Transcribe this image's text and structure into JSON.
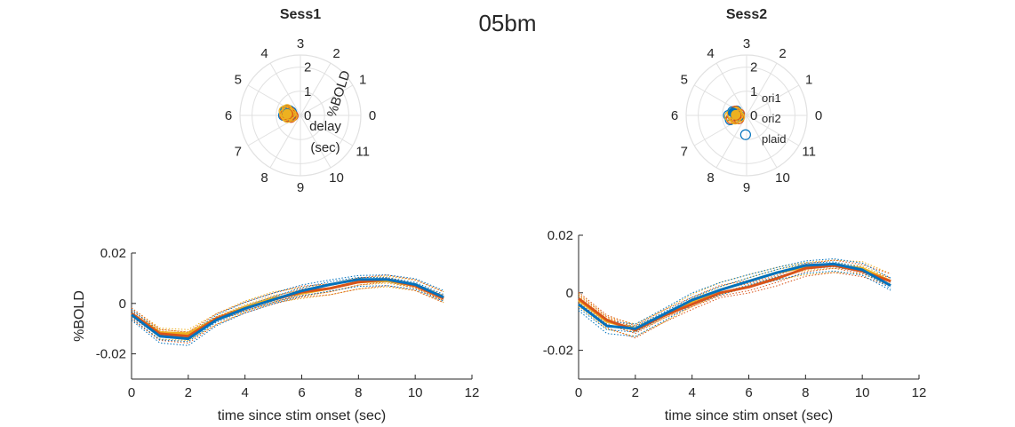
{
  "figure_title": "05bm",
  "chart_data": [
    {
      "type": "polar-scatter",
      "title": "Sess1",
      "theta_ticks": [
        "0",
        "1",
        "2",
        "3",
        "4",
        "5",
        "6",
        "7",
        "8",
        "9",
        "10",
        "11"
      ],
      "r_ticks": [
        "0",
        "1",
        "2"
      ],
      "r_label": "%BOLD",
      "theta_label": "delay (sec)",
      "rlim": [
        0,
        2.5
      ],
      "theta_period_sec": 12,
      "series": [
        {
          "color": "#0072BD",
          "points": [
            [
              5.5,
              0.55
            ],
            [
              5.8,
              0.6
            ],
            [
              6.1,
              0.55
            ],
            [
              5.2,
              0.5
            ],
            [
              5.6,
              0.35
            ],
            [
              6.3,
              0.45
            ],
            [
              5.4,
              0.65
            ],
            [
              5.9,
              0.45
            ],
            [
              6.0,
              0.7
            ],
            [
              5.3,
              0.4
            ]
          ],
          "mean": [
            5.7,
            0.55
          ]
        },
        {
          "color": "#D95319",
          "points": [
            [
              5.6,
              0.5
            ],
            [
              5.9,
              0.55
            ],
            [
              6.2,
              0.5
            ],
            [
              5.4,
              0.45
            ],
            [
              5.8,
              0.35
            ],
            [
              6.4,
              0.4
            ],
            [
              5.5,
              0.6
            ],
            [
              6.0,
              0.65
            ],
            [
              5.3,
              0.55
            ],
            [
              6.1,
              0.3
            ]
          ],
          "mean": [
            5.8,
            0.5
          ]
        },
        {
          "color": "#EDB120",
          "points": [
            [
              5.4,
              0.55
            ],
            [
              5.7,
              0.5
            ],
            [
              6.0,
              0.6
            ],
            [
              5.5,
              0.7
            ],
            [
              5.9,
              0.45
            ],
            [
              6.3,
              0.55
            ],
            [
              5.2,
              0.6
            ],
            [
              6.2,
              0.35
            ],
            [
              5.6,
              0.4
            ],
            [
              5.8,
              0.65
            ]
          ],
          "mean": [
            5.8,
            0.55
          ]
        }
      ]
    },
    {
      "type": "polar-scatter",
      "title": "Sess2",
      "theta_ticks": [
        "0",
        "1",
        "2",
        "3",
        "4",
        "5",
        "6",
        "7",
        "8",
        "9",
        "10",
        "11"
      ],
      "r_ticks": [
        "0",
        "1",
        "2"
      ],
      "legend": [
        "ori1",
        "ori2",
        "plaid"
      ],
      "legend_placement": "right",
      "rlim": [
        0,
        2.5
      ],
      "theta_period_sec": 12,
      "series": [
        {
          "name": "ori1",
          "color": "#0072BD",
          "points": [
            [
              8.9,
              0.8
            ],
            [
              6.5,
              0.7
            ],
            [
              5.5,
              0.6
            ],
            [
              6.0,
              0.75
            ],
            [
              5.2,
              0.45
            ],
            [
              6.3,
              0.35
            ],
            [
              5.7,
              0.5
            ],
            [
              6.1,
              0.3
            ]
          ],
          "mean": [
            5.6,
            0.58
          ]
        },
        {
          "name": "ori2",
          "color": "#D95319",
          "points": [
            [
              6.2,
              0.55
            ],
            [
              5.8,
              0.4
            ],
            [
              6.5,
              0.45
            ],
            [
              5.3,
              0.5
            ],
            [
              6.8,
              0.35
            ],
            [
              6.0,
              0.6
            ],
            [
              5.6,
              0.3
            ],
            [
              6.4,
              0.65
            ]
          ],
          "mean": [
            6.0,
            0.42
          ]
        },
        {
          "name": "plaid",
          "color": "#EDB120",
          "points": [
            [
              5.8,
              0.6
            ],
            [
              6.3,
              0.55
            ],
            [
              5.4,
              0.45
            ],
            [
              6.6,
              0.5
            ],
            [
              5.9,
              0.35
            ],
            [
              6.1,
              0.7
            ],
            [
              5.5,
              0.4
            ],
            [
              6.4,
              0.3
            ]
          ],
          "mean": [
            5.9,
            0.45
          ]
        }
      ]
    },
    {
      "type": "line",
      "xlabel": "time since stim onset (sec)",
      "ylabel": "%BOLD",
      "xlim": [
        0,
        12
      ],
      "ylim": [
        -0.03,
        0.02
      ],
      "xticks": [
        "0",
        "2",
        "4",
        "6",
        "8",
        "10",
        "12"
      ],
      "yticks": [
        "-0.02",
        "0",
        "0.02"
      ],
      "x": [
        0,
        1,
        2,
        3,
        4,
        5,
        6,
        7,
        8,
        9,
        10,
        11
      ],
      "series": [
        {
          "color": "#EDB120",
          "values": [
            -0.004,
            -0.0115,
            -0.012,
            -0.006,
            -0.0015,
            0.002,
            0.004,
            0.006,
            0.0085,
            0.009,
            0.007,
            0.002
          ]
        },
        {
          "color": "#D95319",
          "values": [
            -0.004,
            -0.012,
            -0.013,
            -0.006,
            -0.002,
            0.0015,
            0.0045,
            0.006,
            0.0085,
            0.0095,
            0.007,
            0.002
          ]
        },
        {
          "color": "#0072BD",
          "values": [
            -0.0045,
            -0.013,
            -0.014,
            -0.0065,
            -0.002,
            0.0015,
            0.005,
            0.0075,
            0.0095,
            0.0095,
            0.0075,
            0.0025
          ]
        }
      ]
    },
    {
      "type": "line",
      "xlabel": "time since stim onset (sec)",
      "xlim": [
        0,
        12
      ],
      "ylim": [
        -0.03,
        0.02
      ],
      "xticks": [
        "0",
        "2",
        "4",
        "6",
        "8",
        "10",
        "12"
      ],
      "yticks": [
        "-0.02",
        "0",
        "0.02"
      ],
      "x": [
        0,
        1,
        2,
        3,
        4,
        5,
        6,
        7,
        8,
        9,
        10,
        11
      ],
      "series": [
        {
          "color": "#EDB120",
          "values": [
            -0.0025,
            -0.01,
            -0.0125,
            -0.008,
            -0.003,
            0.001,
            0.004,
            0.007,
            0.009,
            0.0095,
            0.0085,
            0.004
          ]
        },
        {
          "color": "#D95319",
          "values": [
            -0.002,
            -0.0095,
            -0.013,
            -0.008,
            -0.004,
            0.0,
            0.002,
            0.005,
            0.0085,
            0.0095,
            0.0075,
            0.004
          ]
        },
        {
          "color": "#0072BD",
          "values": [
            -0.004,
            -0.0115,
            -0.0125,
            -0.0075,
            -0.0025,
            0.001,
            0.004,
            0.007,
            0.0095,
            0.01,
            0.008,
            0.0025
          ]
        }
      ]
    }
  ]
}
